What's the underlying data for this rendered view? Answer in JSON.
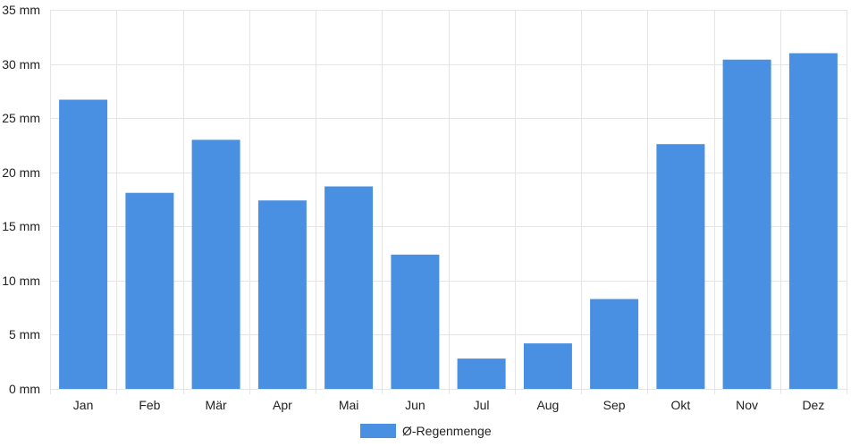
{
  "chart_data": {
    "type": "bar",
    "categories": [
      "Jan",
      "Feb",
      "Mär",
      "Apr",
      "Mai",
      "Jun",
      "Jul",
      "Aug",
      "Sep",
      "Okt",
      "Nov",
      "Dez"
    ],
    "series": [
      {
        "name": "Ø-Regenmenge",
        "values": [
          26.7,
          18.1,
          23.0,
          17.4,
          18.7,
          12.4,
          2.8,
          4.2,
          8.3,
          22.6,
          30.4,
          31.0
        ]
      }
    ],
    "y_ticks": [
      0,
      5,
      10,
      15,
      20,
      25,
      30,
      35
    ],
    "y_unit": "mm",
    "ylim": [
      0,
      35
    ],
    "grid": true,
    "legend_position": "bottom-center",
    "colors": {
      "bar": "#4a90e2",
      "grid": "#e5e5e5",
      "text": "#222222"
    }
  }
}
